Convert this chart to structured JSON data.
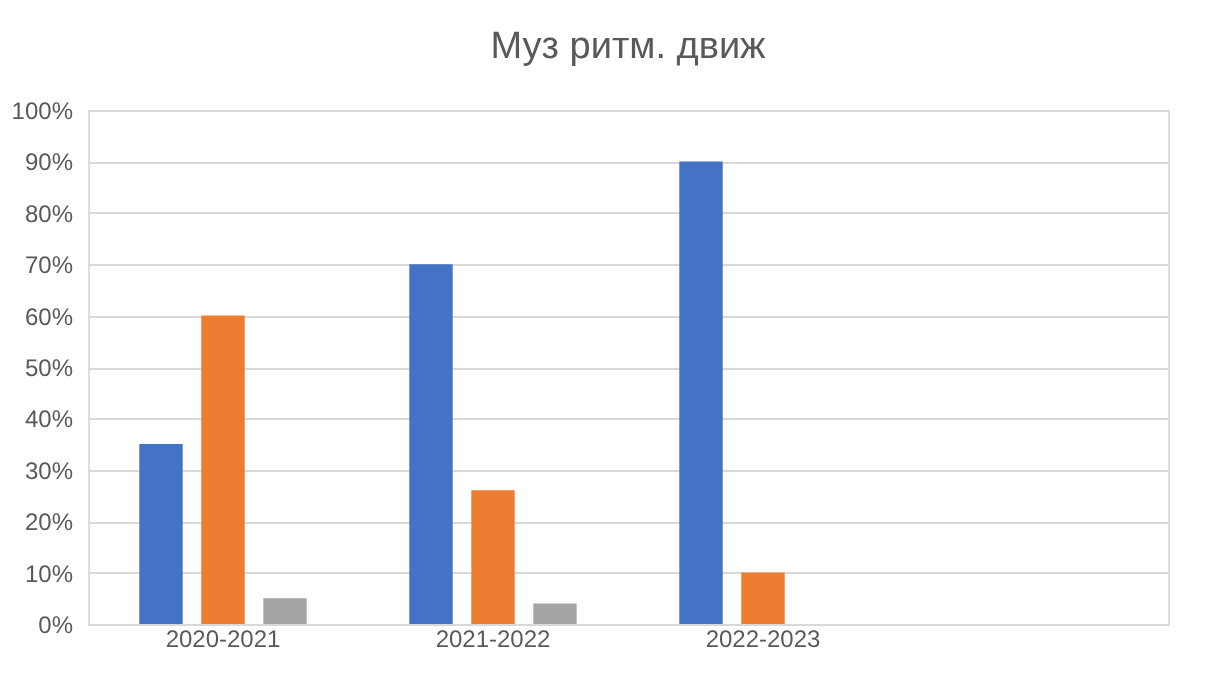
{
  "chart_data": {
    "type": "bar",
    "title": "Муз ритм. движ",
    "categories": [
      "2020-2021",
      "2021-2022",
      "2022-2023",
      null
    ],
    "series": [
      {
        "color": "#4472c4",
        "values": [
          35,
          70,
          90,
          null
        ]
      },
      {
        "color": "#ed7d31",
        "values": [
          60,
          26,
          10,
          null
        ]
      },
      {
        "color": "#a5a5a5",
        "values": [
          5,
          4,
          null,
          null
        ]
      }
    ],
    "ylim": [
      0,
      100
    ],
    "yticks": [
      {
        "value": 0,
        "label": "0%"
      },
      {
        "value": 10,
        "label": "10%"
      },
      {
        "value": 20,
        "label": "20%"
      },
      {
        "value": 30,
        "label": "30%"
      },
      {
        "value": 40,
        "label": "40%"
      },
      {
        "value": 50,
        "label": "50%"
      },
      {
        "value": 60,
        "label": "60%"
      },
      {
        "value": 70,
        "label": "70%"
      },
      {
        "value": 80,
        "label": "80%"
      },
      {
        "value": 90,
        "label": "90%"
      },
      {
        "value": 100,
        "label": "100%"
      }
    ],
    "grid": "y",
    "legend": false
  }
}
